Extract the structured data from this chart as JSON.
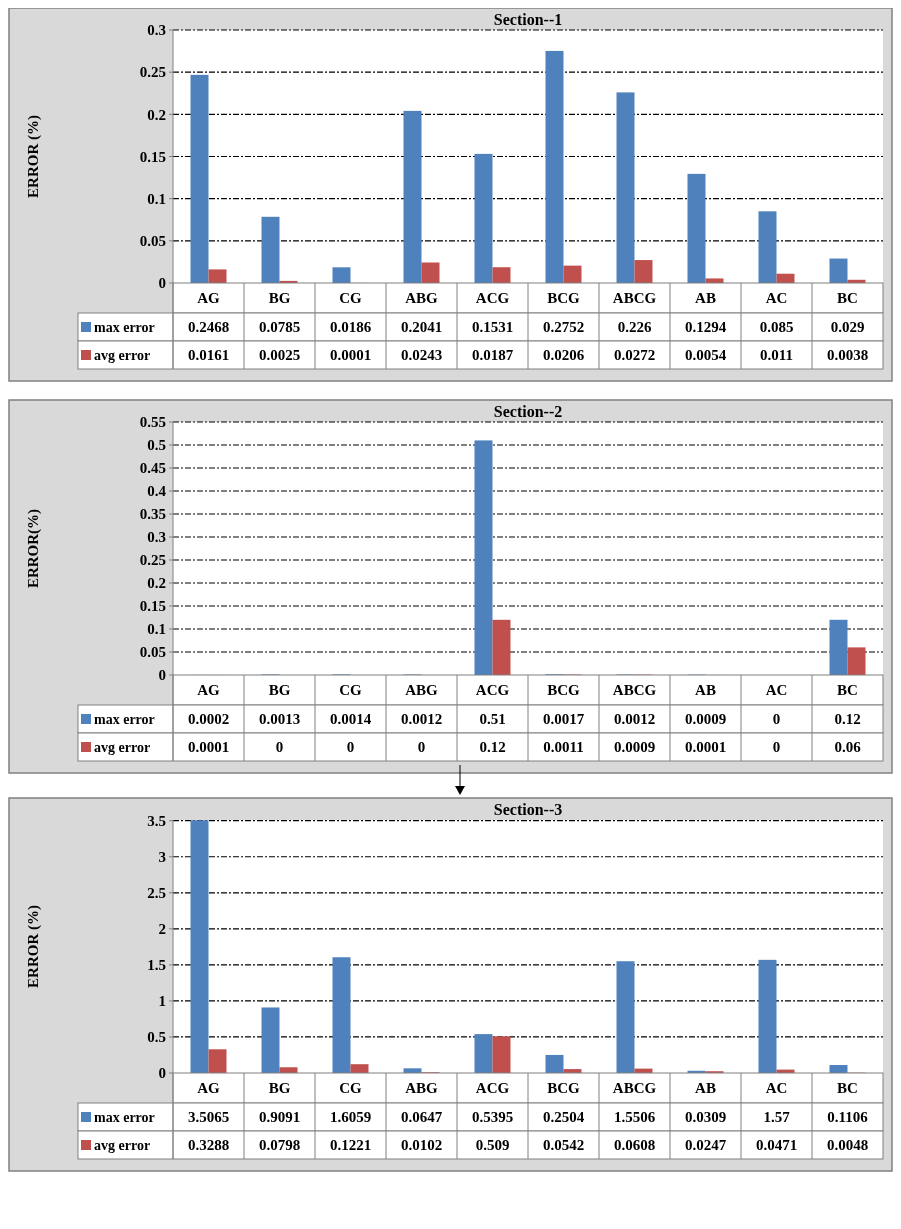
{
  "chart_data": [
    {
      "type": "bar",
      "title": "Section--1",
      "ylabel": "ERROR (%)",
      "categories": [
        "AG",
        "BG",
        "CG",
        "ABG",
        "ACG",
        "BCG",
        "ABCG",
        "AB",
        "AC",
        "BC"
      ],
      "series": [
        {
          "name": "max error",
          "color": "#4f81bd",
          "values": [
            0.2468,
            0.0785,
            0.0186,
            0.2041,
            0.1531,
            0.2752,
            0.226,
            0.1294,
            0.085,
            0.029
          ]
        },
        {
          "name": "avg error",
          "color": "#c0504d",
          "values": [
            0.0161,
            0.0025,
            0.0001,
            0.0243,
            0.0187,
            0.0206,
            0.0272,
            0.0054,
            0.011,
            0.0038
          ]
        }
      ],
      "ylim": [
        0,
        0.3
      ],
      "yticks": [
        0,
        0.05,
        0.1,
        0.15,
        0.2,
        0.25,
        0.3
      ],
      "grid": "y",
      "legend": "bottom",
      "data_labels": true
    },
    {
      "type": "bar",
      "title": "Section--2",
      "ylabel": "ERROR(%)",
      "categories": [
        "AG",
        "BG",
        "CG",
        "ABG",
        "ACG",
        "BCG",
        "ABCG",
        "AB",
        "AC",
        "BC"
      ],
      "series": [
        {
          "name": "max error",
          "color": "#4f81bd",
          "values": [
            0.0002,
            0.0013,
            0.0014,
            0.0012,
            0.51,
            0.0017,
            0.0012,
            0.0009,
            0,
            0.12
          ]
        },
        {
          "name": "avg error",
          "color": "#c0504d",
          "values": [
            0.0001,
            0,
            0,
            0,
            0.12,
            0.0011,
            0.0009,
            0.0001,
            0,
            0.06
          ]
        }
      ],
      "ylim": [
        0,
        0.55
      ],
      "yticks": [
        0,
        0.05,
        0.1,
        0.15,
        0.2,
        0.25,
        0.3,
        0.35,
        0.4,
        0.45,
        0.5,
        0.55
      ],
      "grid": "y",
      "legend": "bottom",
      "data_labels": true
    },
    {
      "type": "bar",
      "title": "Section--3",
      "ylabel": "ERROR (%)",
      "categories": [
        "AG",
        "BG",
        "CG",
        "ABG",
        "ACG",
        "BCG",
        "ABCG",
        "AB",
        "AC",
        "BC"
      ],
      "series": [
        {
          "name": "max error",
          "color": "#4f81bd",
          "values": [
            3.5065,
            0.9091,
            1.6059,
            0.0647,
            0.5395,
            0.2504,
            1.5506,
            0.0309,
            1.57,
            0.1106
          ]
        },
        {
          "name": "avg error",
          "color": "#c0504d",
          "values": [
            0.3288,
            0.0798,
            0.1221,
            0.0102,
            0.509,
            0.0542,
            0.0608,
            0.0247,
            0.0471,
            0.0048
          ]
        }
      ],
      "ylim": [
        0,
        3.51
      ],
      "yticks": [
        0,
        0.5,
        1,
        1.5,
        2,
        2.5,
        3,
        3.5
      ],
      "grid": "y",
      "legend": "bottom",
      "data_labels": true
    }
  ]
}
